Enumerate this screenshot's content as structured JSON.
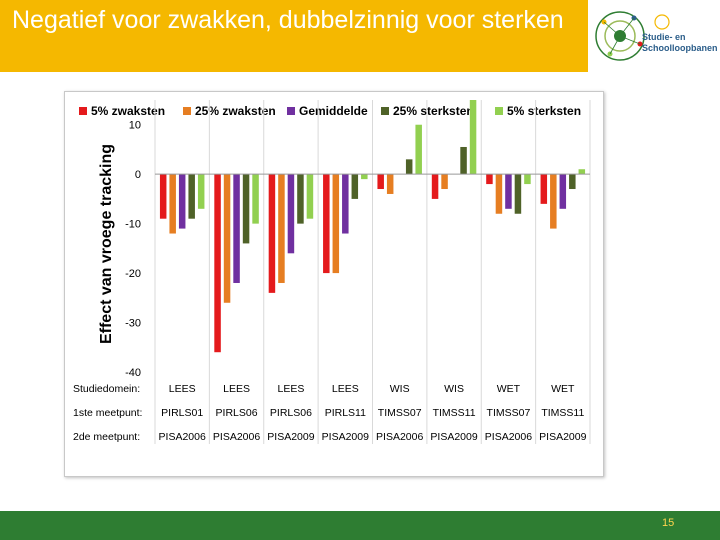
{
  "slide": {
    "title": "Negatief voor zwakken, dubbelzinnig voor sterken",
    "page_number": "15",
    "logo": {
      "line1": "Studie- en",
      "line2": "Schoolloopbanen",
      "icon": "circular-network-logo-icon"
    },
    "colors": {
      "title_bg": "#f5b800",
      "footer_bg": "#2e7d32",
      "page_number": "#ffd54f",
      "title_text": "#ffffff"
    }
  },
  "chart_data": {
    "type": "bar",
    "title": "",
    "ylabel": "Effect van vroege tracking",
    "xlabel": "",
    "ylim": [
      -40,
      15
    ],
    "yticks": [
      10,
      0,
      -10,
      -20,
      -30,
      -40
    ],
    "grid": false,
    "legend_position": "top",
    "series": [
      {
        "name": "5% zwaksten",
        "color": "#e41a1c",
        "values": [
          -9,
          -36,
          -24,
          -20,
          -3,
          -5,
          -2,
          -6
        ]
      },
      {
        "name": "25% zwaksten",
        "color": "#e67e22",
        "values": [
          -12,
          -26,
          -22,
          -20,
          -4,
          -3,
          -8,
          -11
        ]
      },
      {
        "name": "Gemiddelde",
        "color": "#7030a0",
        "values": [
          -11,
          -22,
          -16,
          -12,
          null,
          null,
          -7,
          -7
        ]
      },
      {
        "name": "25% sterksten",
        "color": "#4f6228",
        "values": [
          -9,
          -14,
          -10,
          -5,
          3,
          5.5,
          -8,
          -3
        ]
      },
      {
        "name": "5% sterksten",
        "color": "#92d050",
        "values": [
          -7,
          -10,
          -9,
          -1,
          10,
          15,
          -2,
          1
        ]
      }
    ],
    "row_labels": [
      "Studiedomein:",
      "1ste meetpunt:",
      "2de meetpunt:"
    ],
    "categories": [
      {
        "domain": "LEES",
        "first": "PIRLS01",
        "second": "PISA2006"
      },
      {
        "domain": "LEES",
        "first": "PIRLS06",
        "second": "PISA2006"
      },
      {
        "domain": "LEES",
        "first": "PIRLS06",
        "second": "PISA2009"
      },
      {
        "domain": "LEES",
        "first": "PIRLS11",
        "second": "PISA2009"
      },
      {
        "domain": "WIS",
        "first": "TIMSS07",
        "second": "PISA2006"
      },
      {
        "domain": "WIS",
        "first": "TIMSS11",
        "second": "PISA2009"
      },
      {
        "domain": "WET",
        "first": "TIMSS07",
        "second": "PISA2006"
      },
      {
        "domain": "WET",
        "first": "TIMSS11",
        "second": "PISA2009"
      }
    ]
  }
}
